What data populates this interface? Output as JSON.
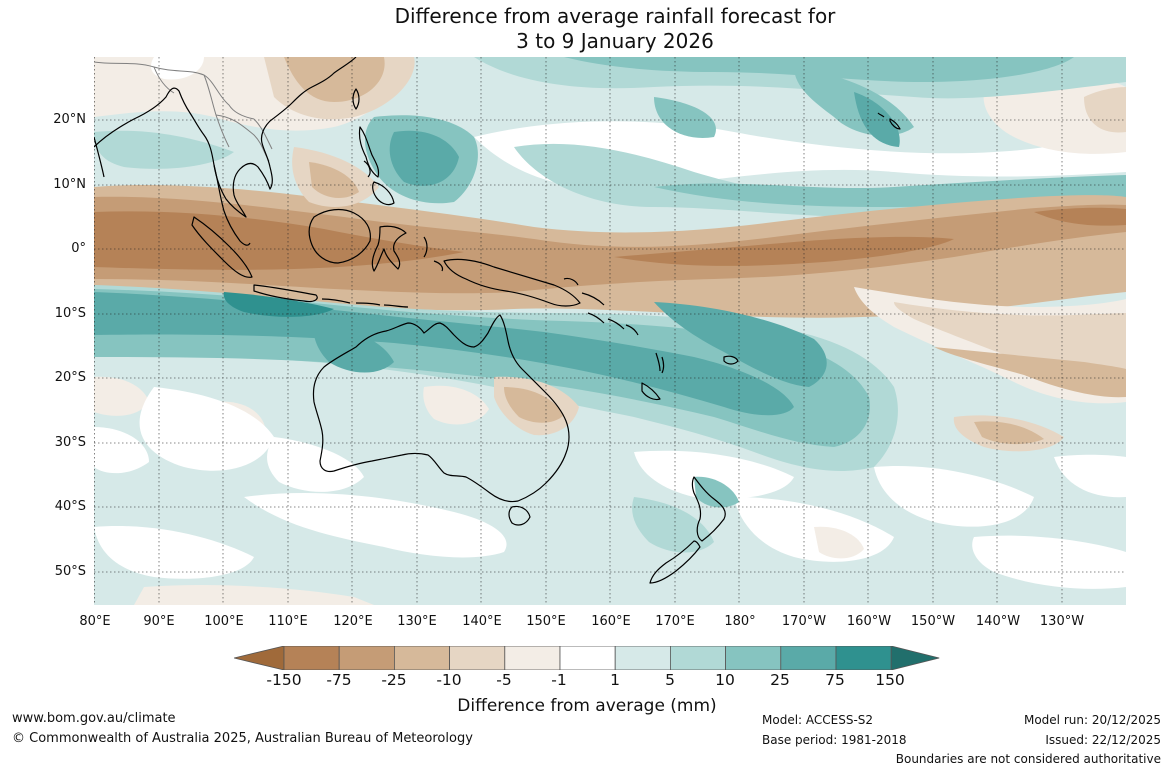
{
  "title": {
    "line1": "Difference from average rainfall forecast for",
    "line2": "3 to 9 January 2026"
  },
  "map": {
    "lat_labels": [
      "20°N",
      "10°N",
      "0°",
      "10°S",
      "20°S",
      "30°S",
      "40°S",
      "50°S"
    ],
    "lon_labels": [
      "80°E",
      "90°E",
      "100°E",
      "110°E",
      "120°E",
      "130°E",
      "140°E",
      "150°E",
      "160°E",
      "170°E",
      "180°",
      "170°W",
      "160°W",
      "150°W",
      "140°W",
      "130°W"
    ],
    "category_colors": {
      "lt_-150": "#a06a3a",
      "-150_-75": "#b58257",
      "-75_-25": "#c59c76",
      "-25_-10": "#d6b99a",
      "-10_-5": "#e6d6c4",
      "-5_-1": "#f3ede6",
      "-1_1": "#ffffff",
      "1_5": "#d6e9e8",
      "5_10": "#b1d9d6",
      "10_25": "#86c4c0",
      "25_75": "#5aaaa8",
      "75_150": "#2f918f",
      "gt_150": "#216f6c"
    },
    "coastline_color": "#000000",
    "border_color": "#808080",
    "grid": "dotted"
  },
  "colorbar": {
    "ticks": [
      "-150",
      "-75",
      "-25",
      "-10",
      "-5",
      "-1",
      "1",
      "5",
      "10",
      "25",
      "75",
      "150"
    ],
    "colors": [
      "#a06a3a",
      "#b58257",
      "#c59c76",
      "#d6b99a",
      "#e6d6c4",
      "#f3ede6",
      "#ffffff",
      "#d6e9e8",
      "#b1d9d6",
      "#86c4c0",
      "#5aaaa8",
      "#2f918f",
      "#216f6c"
    ],
    "label": "Difference from average (mm)"
  },
  "footer": {
    "website": "www.bom.gov.au/climate",
    "copyright": "© Commonwealth of Australia 2025, Australian Bureau of Meteorology",
    "model": "Model: ACCESS-S2",
    "base_period": "Base period: 1981-2018",
    "model_run": "Model run: 20/12/2025",
    "issued": "Issued: 22/12/2025",
    "disclaimer": "Boundaries are not considered authoritative"
  }
}
